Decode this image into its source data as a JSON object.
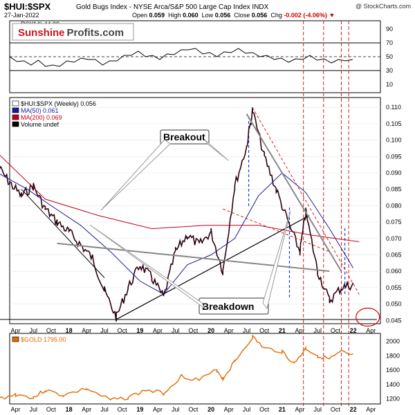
{
  "header": {
    "title": "$HUI:$SPX",
    "subtitle": "Gold Bugs Index - NYSE Arca/S&P 500 Large Cap Index  INDX",
    "copyright": "@ StockCharts.com",
    "date": "27-Jan-2022",
    "open_label": "Open",
    "open": "0.059",
    "high_label": "High",
    "high": "0.060",
    "low_label": "Low",
    "low": "0.056",
    "close_label": "Close",
    "close": "0.056",
    "chg_label": "Chg",
    "chg": "-0.002 (-4.06%)"
  },
  "logo": {
    "part1": "Sunshine",
    "part2": "Profits.com"
  },
  "colors": {
    "ma50": "#1a1a9a",
    "ma200": "#c0001a",
    "gold": "#e06a00",
    "price": "#2a0010",
    "guide_red": "#d02020",
    "guide_blue": "#1f3fcf"
  },
  "chart_data": [
    {
      "type": "line",
      "title": "RSI(14) 44.09",
      "ylim": [
        0,
        100
      ],
      "yticks": [
        "90",
        "70",
        "50",
        "30",
        "10"
      ],
      "reference_lines": [
        70,
        50,
        30
      ],
      "series": [
        {
          "name": "RSI(14)",
          "values": [
            48,
            45,
            42,
            40,
            43,
            38,
            36,
            38,
            42,
            44,
            46,
            48,
            44,
            40,
            42,
            46,
            50,
            54,
            56,
            52,
            50,
            48,
            52,
            55,
            58,
            62,
            60,
            56,
            54,
            52,
            55,
            58,
            60,
            57,
            54,
            52,
            50,
            48,
            46,
            44,
            45,
            48,
            50,
            47,
            45,
            43,
            44,
            46,
            44
          ]
        }
      ]
    },
    {
      "type": "line",
      "title": "$HUI:$SPX (Weekly) 0.056",
      "ylim": [
        0.044,
        0.113
      ],
      "yticks": [
        "0.110",
        "0.105",
        "0.100",
        "0.095",
        "0.090",
        "0.085",
        "0.080",
        "0.075",
        "0.070",
        "0.065",
        "0.060",
        "0.055",
        "0.050",
        "0.045"
      ],
      "x_labels": [
        "Apr",
        "Jul",
        "Oct",
        "18",
        "Apr",
        "Jul",
        "Oct",
        "19",
        "Apr",
        "Jul",
        "Oct",
        "20",
        "Apr",
        "Jul",
        "Oct",
        "21",
        "Apr",
        "Jul",
        "Oct",
        "22",
        "Apr"
      ],
      "x_start": "2017-01",
      "x_end": "2022-05",
      "legend": [
        "$HUI:$SPX (Weekly) 0.056",
        "MA(50) 0.061",
        "MA(200) 0.069",
        "Volume undef"
      ],
      "annotations": [
        "Breakout",
        "Breakdown"
      ],
      "series": [
        {
          "name": "$HUI:$SPX",
          "x": [
            "2017-01",
            "2017-03",
            "2017-05",
            "2017-07",
            "2017-09",
            "2017-11",
            "2018-01",
            "2018-03",
            "2018-05",
            "2018-07",
            "2018-09",
            "2018-11",
            "2019-01",
            "2019-03",
            "2019-05",
            "2019-07",
            "2019-09",
            "2019-11",
            "2020-01",
            "2020-03",
            "2020-05",
            "2020-07",
            "2020-08",
            "2020-10",
            "2020-12",
            "2021-02",
            "2021-04",
            "2021-05",
            "2021-07",
            "2021-09",
            "2021-11",
            "2022-01"
          ],
          "values": [
            0.092,
            0.087,
            0.083,
            0.086,
            0.079,
            0.075,
            0.072,
            0.068,
            0.064,
            0.054,
            0.046,
            0.055,
            0.062,
            0.058,
            0.052,
            0.066,
            0.071,
            0.068,
            0.072,
            0.06,
            0.086,
            0.098,
            0.109,
            0.095,
            0.085,
            0.075,
            0.066,
            0.078,
            0.06,
            0.051,
            0.055,
            0.056
          ]
        },
        {
          "name": "MA(50)",
          "x": [
            "2017-01",
            "2017-06",
            "2017-10",
            "2018-03",
            "2018-08",
            "2019-01",
            "2019-05",
            "2019-09",
            "2020-01",
            "2020-05",
            "2020-09",
            "2021-01",
            "2021-05",
            "2021-09",
            "2022-01"
          ],
          "values": [
            0.09,
            0.085,
            0.08,
            0.074,
            0.066,
            0.057,
            0.053,
            0.062,
            0.065,
            0.07,
            0.083,
            0.09,
            0.084,
            0.073,
            0.061
          ]
        },
        {
          "name": "MA(200)",
          "x": [
            "2017-01",
            "2017-09",
            "2018-06",
            "2019-03",
            "2019-12",
            "2020-09",
            "2021-06",
            "2022-02"
          ],
          "values": [
            0.096,
            0.082,
            0.077,
            0.073,
            0.074,
            0.074,
            0.071,
            0.069
          ]
        }
      ]
    },
    {
      "type": "area",
      "title": "$GOLD 1795.00",
      "ylim": [
        1130,
        2110
      ],
      "yticks": [
        "2000",
        "1800",
        "1600",
        "1400",
        "1200"
      ],
      "series": [
        {
          "name": "$GOLD",
          "x": [
            "2017-01",
            "2017-04",
            "2017-07",
            "2017-09",
            "2017-12",
            "2018-04",
            "2018-08",
            "2018-11",
            "2019-02",
            "2019-05",
            "2019-08",
            "2019-11",
            "2020-02",
            "2020-03",
            "2020-05",
            "2020-08",
            "2020-10",
            "2021-01",
            "2021-03",
            "2021-05",
            "2021-07",
            "2021-09",
            "2021-11",
            "2022-01"
          ],
          "values": [
            1200,
            1260,
            1220,
            1320,
            1250,
            1340,
            1180,
            1220,
            1320,
            1280,
            1520,
            1460,
            1600,
            1480,
            1720,
            2060,
            1900,
            1860,
            1690,
            1900,
            1800,
            1750,
            1850,
            1795
          ]
        }
      ]
    }
  ]
}
